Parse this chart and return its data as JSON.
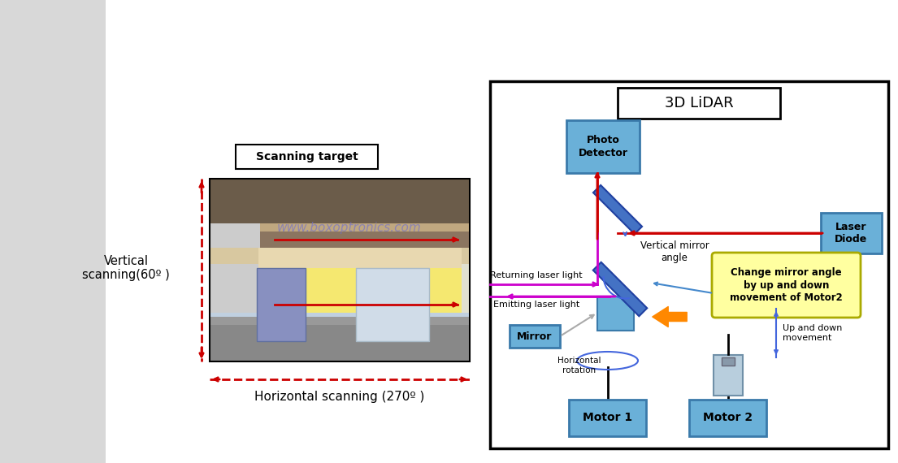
{
  "bg_left": "#d8d8d8",
  "bg_right": "#f5f5f5",
  "white": "#ffffff",
  "blue_box": "#6ab0d8",
  "blue_box_edge": "#3a7aaa",
  "red_line": "#cc0000",
  "magenta_line": "#cc00cc",
  "blue_line": "#4466dd",
  "yellow_box_bg": "#ffffa0",
  "yellow_box_edge": "#aaaa00",
  "orange_color": "#ff8800",
  "motor2_body": "#b0c8d8",
  "room_ceil": "#6b5c4a",
  "room_wall_top": "#a08060",
  "room_wall_yellow": "#f5e870",
  "room_floor": "#888888",
  "room_floor2": "#aaaaaa",
  "room_window_left": "#8899bb",
  "room_window_right": "#d0dce8",
  "watermark_color": "#7070cc",
  "scanning_target_label": "Scanning target",
  "vertical_scanning_label": "Vertical\nscanning(60º )",
  "horizontal_scanning_label": "Horizontal scanning (270º )",
  "lidar_label": "3D LiDAR",
  "photo_detector_label": "Photo\nDetector",
  "laser_diode_label": "Laser\nDiode",
  "mirror_label": "Mirror",
  "motor1_label": "Motor 1",
  "motor2_label": "Motor 2",
  "returning_laser_label": "Returning laser light",
  "emitting_laser_label": "Emitting laser light",
  "vertical_mirror_label": "Vertical mirror\nangle",
  "change_mirror_label": "Change mirror angle\nby up and down\nmovement of Motor2",
  "horizontal_rotation_label": "Horizontal\nrotation",
  "up_down_label": "Up and down\nmovement"
}
